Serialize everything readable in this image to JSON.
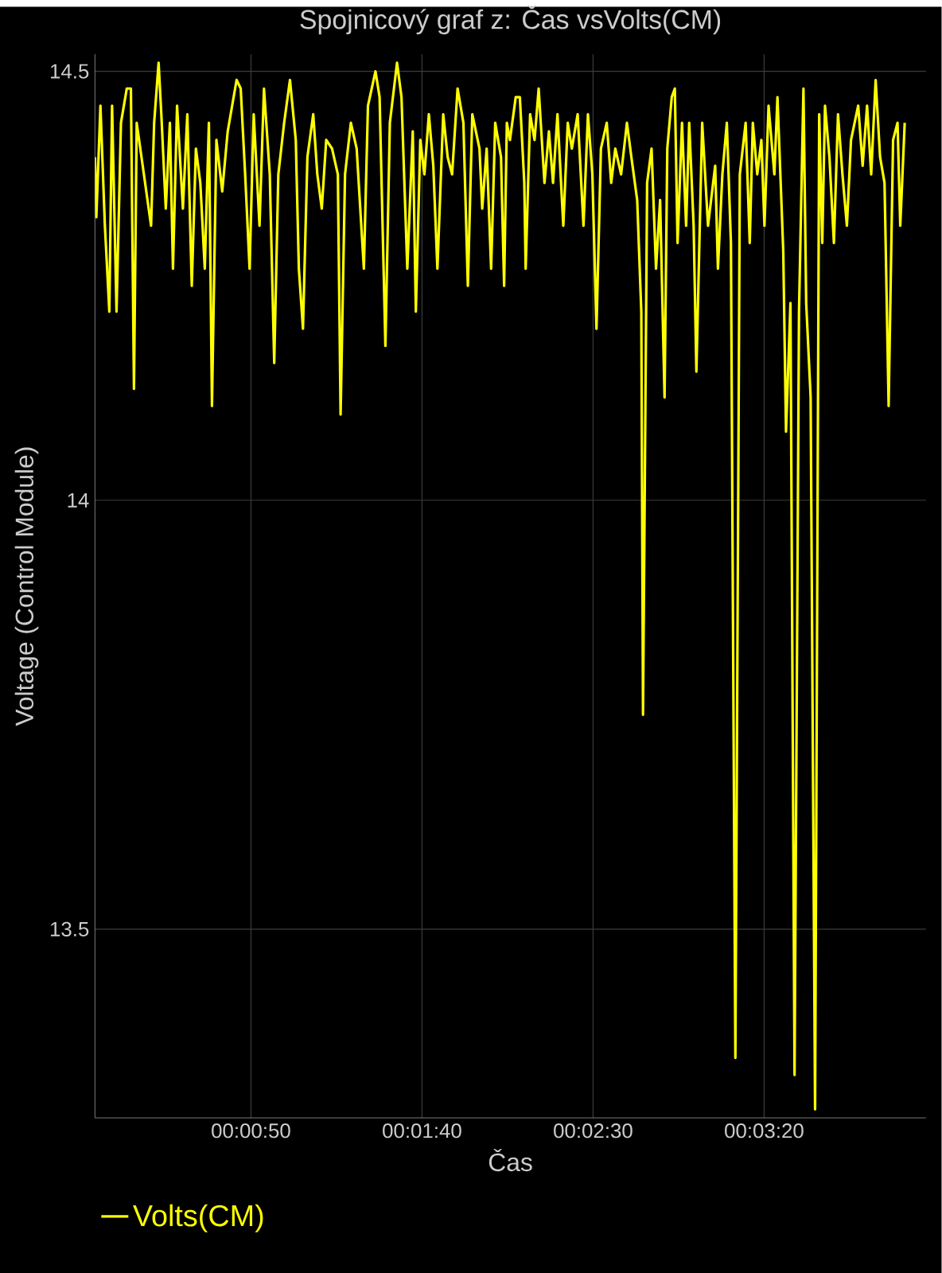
{
  "chart_data": {
    "type": "line",
    "title": "Spojnicový graf z: Čas vsVolts(CM)",
    "xlabel": "Čas",
    "ylabel": "Voltage (Control Module)",
    "xlim": [
      4.4,
      247.3
    ],
    "ylim": [
      13.28,
      14.52
    ],
    "xticks": [
      {
        "value": 50,
        "label": "00:00:50"
      },
      {
        "value": 100,
        "label": "00:01:40"
      },
      {
        "value": 150,
        "label": "00:02:30"
      },
      {
        "value": 200,
        "label": "00:03:20"
      }
    ],
    "yticks": [
      13.5,
      14,
      14.5
    ],
    "grid": true,
    "legend": "bottom left",
    "x": [
      4.4,
      4.8,
      6.0,
      7.3,
      8.6,
      9.4,
      10.7,
      12.0,
      13.7,
      14.9,
      15.8,
      16.6,
      18.7,
      20.8,
      21.7,
      23.0,
      23.8,
      25.1,
      26.3,
      27.2,
      28.4,
      30.1,
      31.4,
      32.7,
      33.9,
      35.2,
      36.5,
      37.7,
      38.6,
      39.9,
      41.6,
      43.2,
      45.8,
      47.0,
      48.3,
      49.6,
      50.8,
      52.5,
      53.8,
      55.5,
      56.8,
      58.0,
      59.7,
      61.4,
      63.1,
      64.0,
      65.2,
      66.5,
      68.2,
      69.4,
      70.7,
      72.0,
      73.7,
      75.4,
      76.2,
      77.5,
      79.2,
      80.9,
      83.0,
      84.2,
      86.4,
      87.6,
      89.3,
      90.6,
      92.7,
      94.0,
      95.7,
      97.3,
      98.2,
      99.5,
      100.7,
      102.0,
      103.3,
      104.5,
      106.2,
      107.5,
      108.8,
      110.4,
      112.1,
      113.4,
      114.7,
      116.8,
      117.6,
      118.9,
      120.2,
      121.4,
      123.1,
      124.0,
      124.8,
      125.7,
      127.4,
      128.6,
      129.9,
      130.3,
      131.6,
      132.9,
      134.1,
      135.8,
      137.1,
      138.3,
      139.6,
      141.3,
      142.6,
      143.8,
      145.5,
      147.2,
      148.5,
      149.8,
      151.0,
      152.3,
      154.0,
      155.3,
      156.5,
      158.2,
      159.9,
      161.2,
      162.9,
      164.1,
      164.6,
      165.8,
      167.1,
      168.4,
      169.6,
      170.9,
      171.7,
      173.0,
      173.9,
      174.7,
      176.0,
      177.2,
      178.1,
      179.4,
      180.2,
      181.9,
      183.6,
      185.7,
      186.5,
      187.8,
      189.1,
      190.3,
      191.6,
      192.9,
      194.6,
      195.8,
      196.7,
      198.0,
      199.2,
      200.1,
      201.3,
      203.0,
      203.9,
      205.6,
      206.4,
      207.7,
      208.9,
      210.2,
      211.5,
      212.3,
      213.6,
      214.9,
      216.1,
      217.0,
      217.8,
      219.1,
      220.4,
      221.6,
      222.9,
      224.2,
      225.4,
      227.5,
      228.8,
      230.1,
      231.3,
      232.6,
      233.9,
      235.2,
      236.4,
      237.7,
      239.0,
      239.8,
      241.1
    ],
    "series": [
      {
        "name": "Volts(CM)",
        "color": "#ffff00",
        "values": [
          14.4,
          14.33,
          14.46,
          14.32,
          14.22,
          14.46,
          14.22,
          14.44,
          14.48,
          14.48,
          14.13,
          14.44,
          14.38,
          14.32,
          14.44,
          14.51,
          14.45,
          14.34,
          14.44,
          14.27,
          14.46,
          14.34,
          14.45,
          14.25,
          14.41,
          14.37,
          14.27,
          14.44,
          14.11,
          14.42,
          14.36,
          14.43,
          14.49,
          14.48,
          14.38,
          14.27,
          14.45,
          14.32,
          14.48,
          14.38,
          14.16,
          14.38,
          14.44,
          14.49,
          14.42,
          14.27,
          14.2,
          14.4,
          14.45,
          14.38,
          14.34,
          14.42,
          14.41,
          14.38,
          14.1,
          14.38,
          14.44,
          14.41,
          14.27,
          14.46,
          14.5,
          14.47,
          14.18,
          14.44,
          14.51,
          14.47,
          14.27,
          14.43,
          14.22,
          14.42,
          14.38,
          14.45,
          14.39,
          14.27,
          14.45,
          14.4,
          14.38,
          14.48,
          14.44,
          14.25,
          14.45,
          14.41,
          14.34,
          14.41,
          14.27,
          14.44,
          14.4,
          14.25,
          14.44,
          14.42,
          14.47,
          14.47,
          14.37,
          14.27,
          14.45,
          14.42,
          14.48,
          14.37,
          14.43,
          14.37,
          14.45,
          14.32,
          14.44,
          14.41,
          14.45,
          14.32,
          14.45,
          14.38,
          14.2,
          14.41,
          14.44,
          14.37,
          14.41,
          14.38,
          14.44,
          14.4,
          14.35,
          14.22,
          13.75,
          14.37,
          14.41,
          14.27,
          14.35,
          14.12,
          14.41,
          14.47,
          14.48,
          14.3,
          14.44,
          14.32,
          14.44,
          14.32,
          14.15,
          14.44,
          14.32,
          14.39,
          14.27,
          14.38,
          14.44,
          14.3,
          13.35,
          14.38,
          14.44,
          14.3,
          14.44,
          14.38,
          14.42,
          14.32,
          14.46,
          14.38,
          14.47,
          14.29,
          14.08,
          14.23,
          13.33,
          14.22,
          14.48,
          14.23,
          14.12,
          13.29,
          14.45,
          14.3,
          14.46,
          14.4,
          14.3,
          14.45,
          14.38,
          14.32,
          14.42,
          14.46,
          14.39,
          14.46,
          14.38,
          14.49,
          14.4,
          14.37,
          14.11,
          14.42,
          14.44,
          14.32,
          14.44
        ]
      }
    ]
  }
}
